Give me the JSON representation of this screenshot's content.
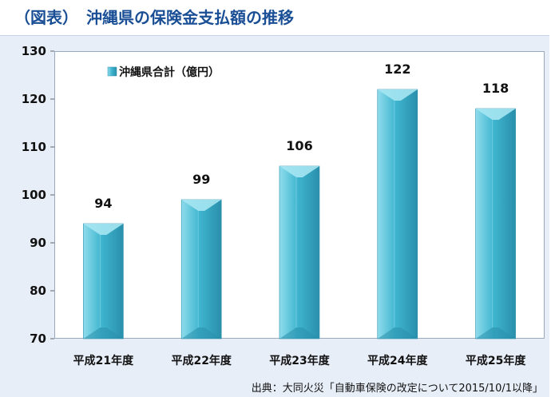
{
  "title": "（図表）　沖縄県の保険金支払額の推移",
  "source": "出典：大同火災「自動車保険の改定について2015/10/1以降」",
  "colors": {
    "title": "#1a4f96",
    "bar": "#3fb5cf",
    "bar_light": "#8fdcec",
    "bar_dark": "#2a8fab"
  },
  "chart_data": {
    "type": "bar",
    "categories": [
      "平成21年度",
      "平成22年度",
      "平成23年度",
      "平成24年度",
      "平成25年度"
    ],
    "series": [
      {
        "name": "沖縄県合計（億円）",
        "values": [
          94,
          99,
          106,
          122,
          118
        ]
      }
    ],
    "data_labels": [
      "94",
      "99",
      "106",
      "122",
      "118"
    ],
    "yticks": [
      "70",
      "80",
      "90",
      "100",
      "110",
      "120",
      "130"
    ],
    "ylim": [
      70,
      130
    ],
    "grid": false,
    "legend": "top-left"
  }
}
